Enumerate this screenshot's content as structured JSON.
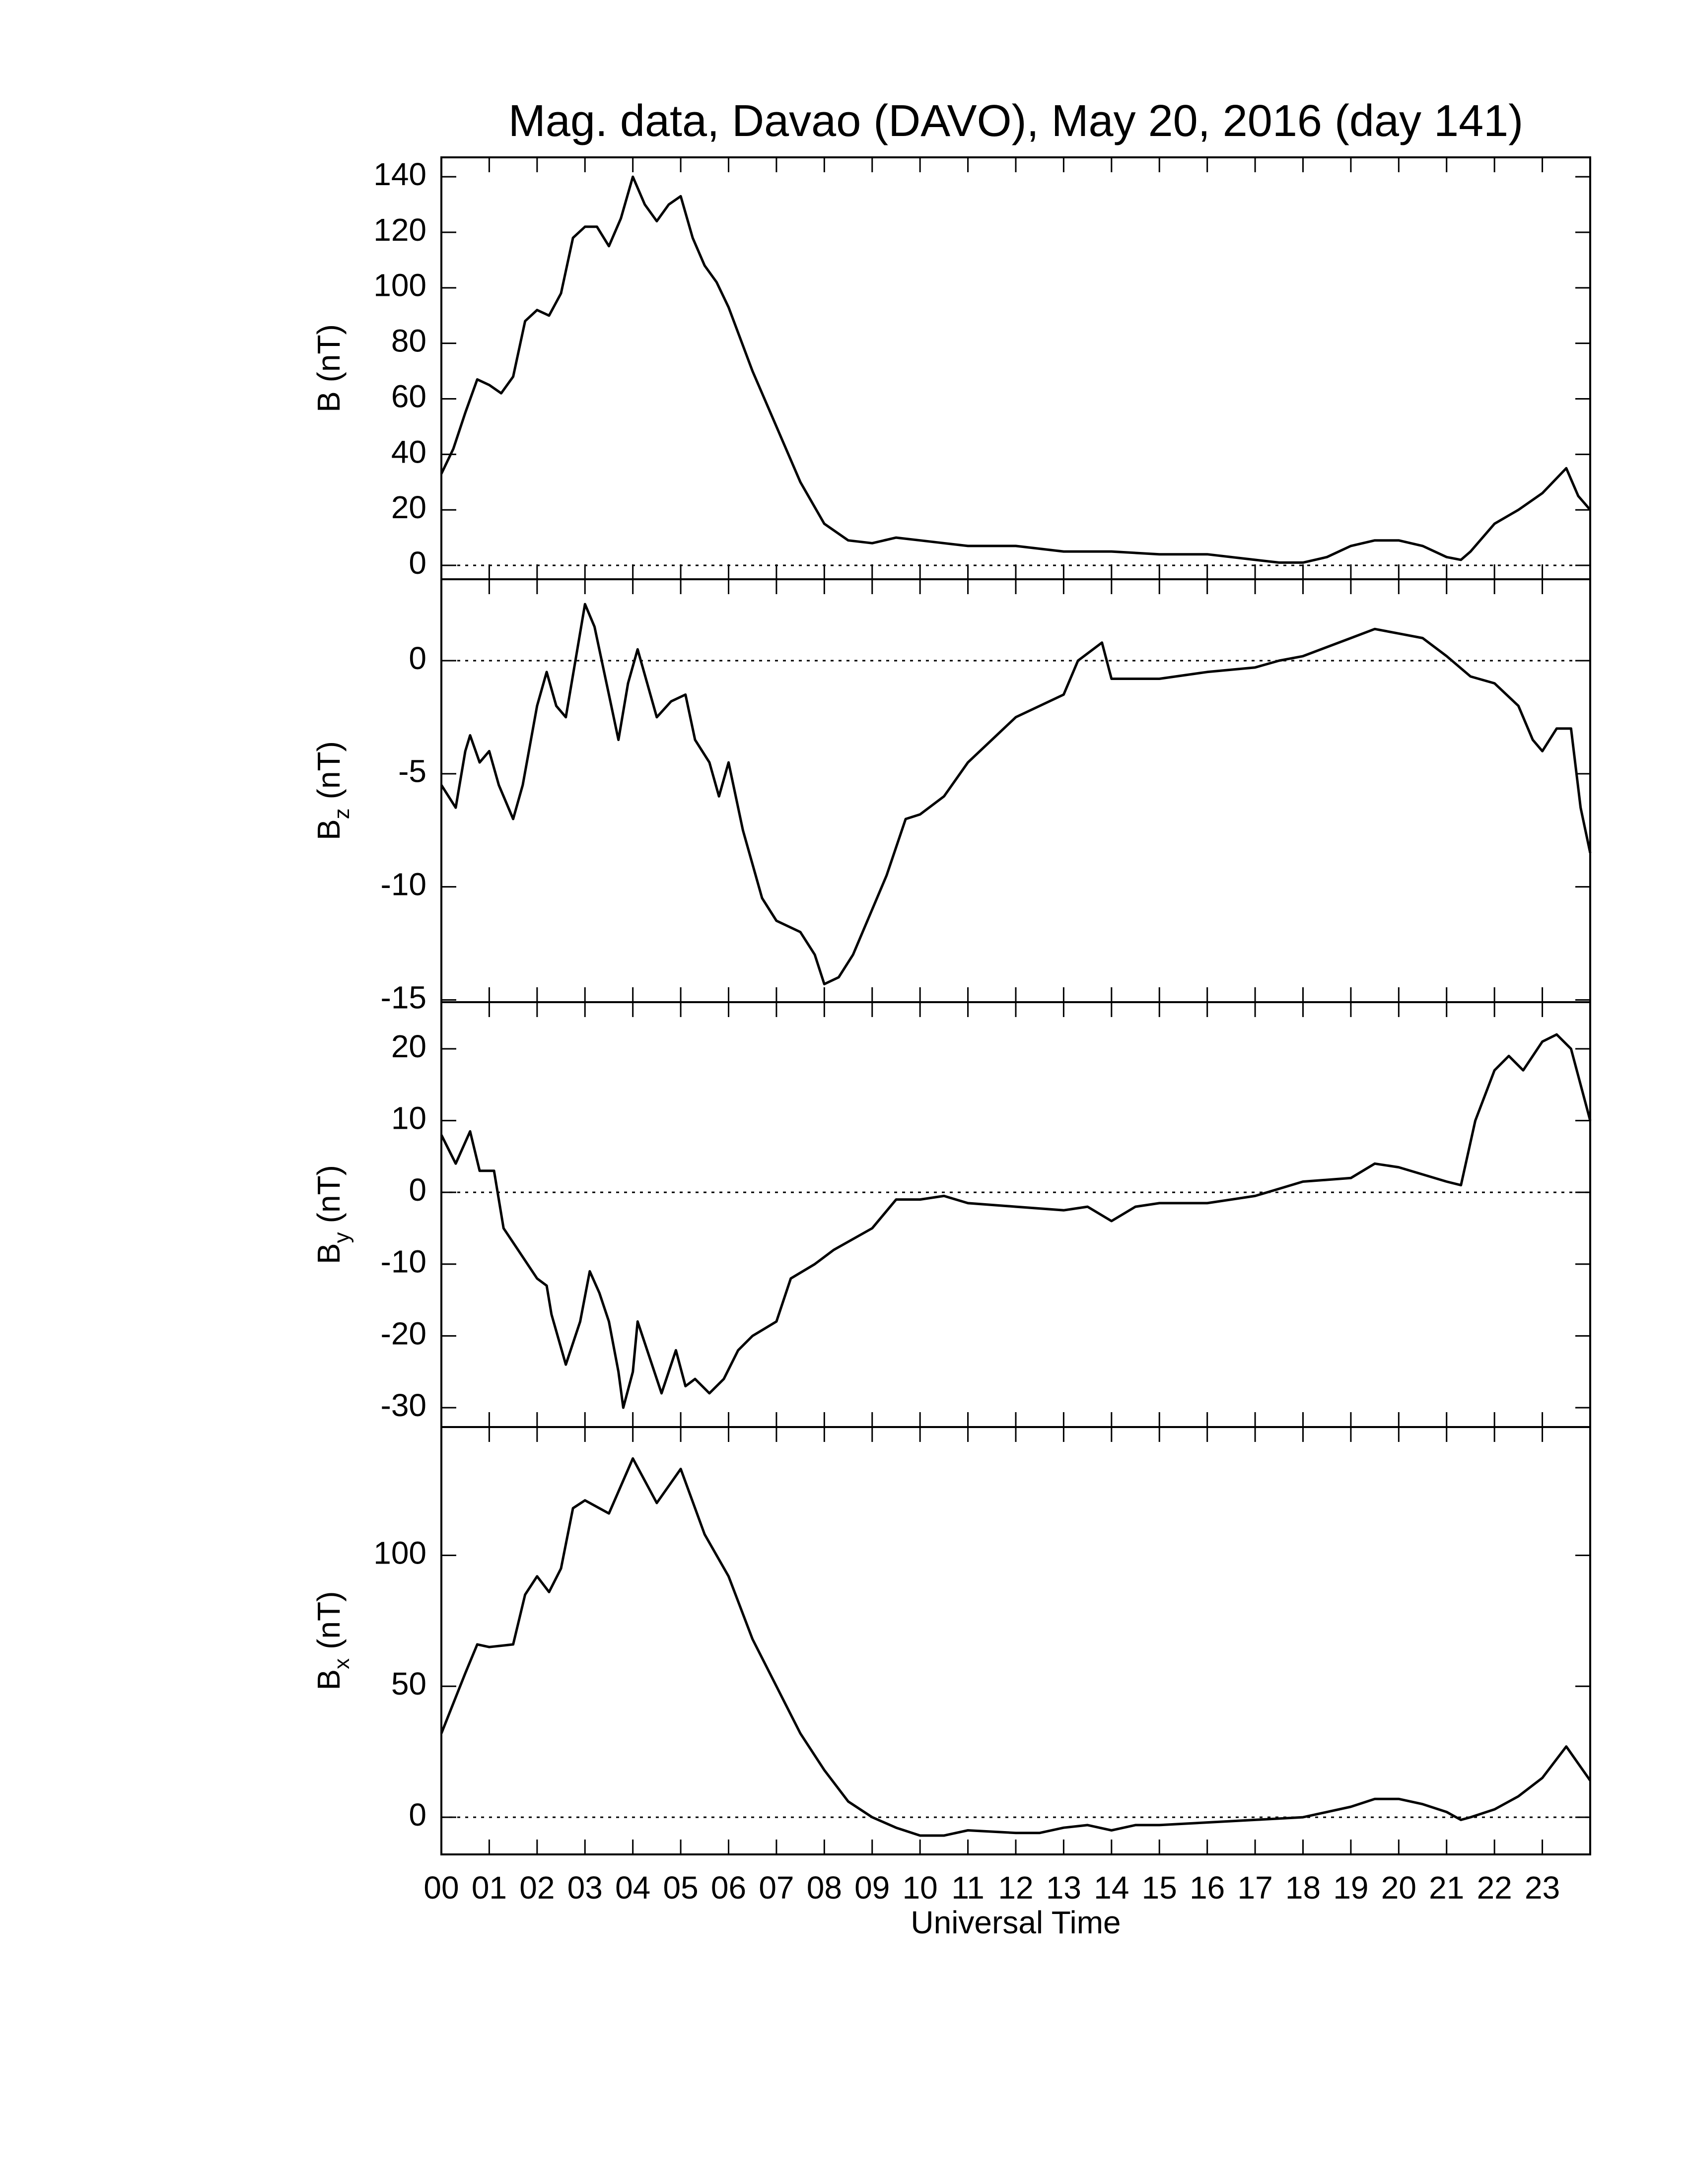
{
  "chart_data": [
    {
      "type": "line",
      "title": "Mag. data, Davao (DAVO), May 20, 2016 (day 141)",
      "ylabel": "B (nT)",
      "color": "#000000",
      "x": [
        0,
        0.25,
        0.5,
        0.75,
        1.0,
        1.25,
        1.5,
        1.75,
        2.0,
        2.25,
        2.5,
        2.75,
        3.0,
        3.25,
        3.5,
        3.75,
        4.0,
        4.25,
        4.5,
        4.75,
        5.0,
        5.25,
        5.5,
        5.75,
        6.0,
        6.5,
        7.0,
        7.5,
        8.0,
        8.5,
        9.0,
        9.5,
        10,
        10.5,
        11,
        12,
        13,
        13.5,
        14,
        15,
        16,
        17,
        17.5,
        18,
        18.5,
        19,
        19.5,
        20,
        20.5,
        21,
        21.3,
        21.5,
        22,
        22.5,
        23,
        23.5,
        23.75,
        24
      ],
      "values": [
        33,
        42,
        55,
        67,
        65,
        62,
        68,
        88,
        92,
        90,
        98,
        118,
        122,
        122,
        115,
        125,
        140,
        130,
        124,
        130,
        133,
        118,
        108,
        102,
        93,
        70,
        50,
        30,
        15,
        9,
        8,
        10,
        9,
        8,
        7,
        7,
        5,
        5,
        5,
        4,
        4,
        2,
        1,
        1,
        3,
        7,
        9,
        9,
        7,
        3,
        2,
        5,
        15,
        20,
        26,
        35,
        25,
        20
      ],
      "xlim": [
        0,
        24
      ],
      "xticks": [
        0,
        1,
        2,
        3,
        4,
        5,
        6,
        7,
        8,
        9,
        10,
        11,
        12,
        13,
        14,
        15,
        16,
        17,
        18,
        19,
        20,
        21,
        22,
        23
      ],
      "ylim": [
        -5,
        147
      ],
      "yticks": [
        0,
        20,
        40,
        60,
        80,
        100,
        120,
        140
      ],
      "reference_line": 0
    },
    {
      "type": "line",
      "ylabel": {
        "main": "B",
        "sub": "z",
        "unit": "(nT)"
      },
      "color": "#000000",
      "x": [
        0,
        0.3,
        0.5,
        0.6,
        0.8,
        1.0,
        1.2,
        1.5,
        1.7,
        2.0,
        2.2,
        2.4,
        2.6,
        2.8,
        3.0,
        3.2,
        3.5,
        3.7,
        3.9,
        4.1,
        4.3,
        4.5,
        4.8,
        5.1,
        5.3,
        5.6,
        5.8,
        6.0,
        6.3,
        6.7,
        7.0,
        7.5,
        7.8,
        8.0,
        8.3,
        8.6,
        9.0,
        9.3,
        9.7,
        10,
        10.5,
        11,
        11.5,
        12,
        12.5,
        13,
        13.3,
        13.8,
        14,
        15,
        16,
        17,
        17.5,
        18,
        19,
        19.5,
        20,
        20.5,
        21,
        21.5,
        22,
        22.5,
        22.8,
        23,
        23.3,
        23.6,
        23.8,
        24
      ],
      "values": [
        -5.5,
        -6.5,
        -4.0,
        -3.3,
        -4.5,
        -4.0,
        -5.5,
        -7.0,
        -5.5,
        -2.0,
        -0.5,
        -2.0,
        -2.5,
        0,
        2.5,
        1.5,
        -1.5,
        -3.5,
        -1,
        0.5,
        -1,
        -2.5,
        -1.8,
        -1.5,
        -3.5,
        -4.5,
        -6.0,
        -4.5,
        -7.5,
        -10.5,
        -11.5,
        -12.0,
        -13.0,
        -14.3,
        -14.0,
        -13.0,
        -11.0,
        -9.5,
        -7.0,
        -6.8,
        -6.0,
        -4.5,
        -3.5,
        -2.5,
        -2.0,
        -1.5,
        0,
        0.8,
        -0.8,
        -0.8,
        -0.5,
        -0.3,
        0,
        0.2,
        1.0,
        1.4,
        1.2,
        1.0,
        0.2,
        -0.7,
        -1.0,
        -2.0,
        -3.5,
        -4.0,
        -3.0,
        -3.0,
        -6.5,
        -8.5
      ],
      "xlim": [
        0,
        24
      ],
      "xticks": [
        0,
        1,
        2,
        3,
        4,
        5,
        6,
        7,
        8,
        9,
        10,
        11,
        12,
        13,
        14,
        15,
        16,
        17,
        18,
        19,
        20,
        21,
        22,
        23
      ],
      "ylim": [
        -15.1,
        3.6
      ],
      "yticks": [
        -15,
        -10,
        -5,
        0
      ],
      "reference_line": 0
    },
    {
      "type": "line",
      "ylabel": {
        "main": "B",
        "sub": "y",
        "unit": "(nT)"
      },
      "color": "#000000",
      "x": [
        0,
        0.3,
        0.6,
        0.8,
        1.1,
        1.3,
        1.6,
        2.0,
        2.2,
        2.3,
        2.6,
        2.9,
        3.1,
        3.3,
        3.5,
        3.7,
        3.8,
        4.0,
        4.1,
        4.3,
        4.6,
        4.9,
        5.1,
        5.3,
        5.6,
        5.9,
        6.2,
        6.5,
        7,
        7.3,
        7.8,
        8.2,
        9,
        9.5,
        10,
        10.5,
        11,
        12,
        13,
        13.5,
        14,
        14.5,
        15,
        16,
        17,
        18,
        19,
        19.5,
        20,
        21,
        21.3,
        21.6,
        22,
        22.3,
        22.6,
        23,
        23.3,
        23.6,
        24
      ],
      "values": [
        8,
        4,
        8.5,
        3,
        3,
        -5,
        -8,
        -12,
        -13,
        -17,
        -24,
        -18,
        -11,
        -14,
        -18,
        -25,
        -30,
        -25,
        -18,
        -22,
        -28,
        -22,
        -27,
        -26,
        -28,
        -26,
        -22,
        -20,
        -18,
        -12,
        -10,
        -8,
        -5,
        -1,
        -1,
        -0.5,
        -1.5,
        -2,
        -2.5,
        -2,
        -4,
        -2,
        -1.5,
        -1.5,
        -0.5,
        1.5,
        2,
        4,
        3.5,
        1.5,
        1,
        10,
        17,
        19,
        17,
        21,
        22,
        20,
        10
      ],
      "xlim": [
        0,
        24
      ],
      "xticks": [
        0,
        1,
        2,
        3,
        4,
        5,
        6,
        7,
        8,
        9,
        10,
        11,
        12,
        13,
        14,
        15,
        16,
        17,
        18,
        19,
        20,
        21,
        22,
        23
      ],
      "ylim": [
        -32.7,
        26.5
      ],
      "yticks": [
        -30,
        -20,
        -10,
        0,
        10,
        20
      ],
      "reference_line": 0
    },
    {
      "type": "line",
      "ylabel": {
        "main": "B",
        "sub": "x",
        "unit": "(nT)"
      },
      "xlabel": "Universal Time",
      "color": "#000000",
      "x": [
        0,
        0.5,
        0.75,
        1.0,
        1.5,
        1.75,
        2.0,
        2.25,
        2.5,
        2.75,
        3.0,
        3.5,
        4.0,
        4.5,
        5.0,
        5.5,
        6.0,
        6.5,
        7,
        7.5,
        8,
        8.5,
        9,
        9.5,
        10,
        10.5,
        11,
        12,
        12.5,
        13,
        13.5,
        14,
        14.5,
        15,
        16,
        17,
        18,
        19,
        19.5,
        20,
        20.5,
        21,
        21.3,
        21.5,
        22,
        22.5,
        23,
        23.5,
        24
      ],
      "values": [
        32,
        55,
        66,
        65,
        66,
        85,
        92,
        86,
        95,
        118,
        121,
        116,
        137,
        120,
        133,
        108,
        92,
        68,
        50,
        32,
        18,
        6,
        0,
        -4,
        -7,
        -7,
        -5,
        -6,
        -6,
        -4,
        -3,
        -5,
        -3,
        -3,
        -2,
        -1,
        0,
        4,
        7,
        7,
        5,
        2,
        -1,
        0,
        3,
        8,
        15,
        27,
        14
      ],
      "xlim": [
        0,
        24
      ],
      "xticks": [
        {
          "value": 0,
          "label": "00"
        },
        {
          "value": 1,
          "label": "01"
        },
        {
          "value": 2,
          "label": "02"
        },
        {
          "value": 3,
          "label": "03"
        },
        {
          "value": 4,
          "label": "04"
        },
        {
          "value": 5,
          "label": "05"
        },
        {
          "value": 6,
          "label": "06"
        },
        {
          "value": 7,
          "label": "07"
        },
        {
          "value": 8,
          "label": "08"
        },
        {
          "value": 9,
          "label": "09"
        },
        {
          "value": 10,
          "label": "10"
        },
        {
          "value": 11,
          "label": "11"
        },
        {
          "value": 12,
          "label": "12"
        },
        {
          "value": 13,
          "label": "13"
        },
        {
          "value": 14,
          "label": "14"
        },
        {
          "value": 15,
          "label": "15"
        },
        {
          "value": 16,
          "label": "16"
        },
        {
          "value": 17,
          "label": "17"
        },
        {
          "value": 18,
          "label": "18"
        },
        {
          "value": 19,
          "label": "19"
        },
        {
          "value": 20,
          "label": "20"
        },
        {
          "value": 21,
          "label": "21"
        },
        {
          "value": 22,
          "label": "22"
        },
        {
          "value": 23,
          "label": "23"
        }
      ],
      "ylim": [
        -14.2,
        149
      ],
      "yticks": [
        0,
        50,
        100
      ],
      "reference_line": 0
    }
  ]
}
